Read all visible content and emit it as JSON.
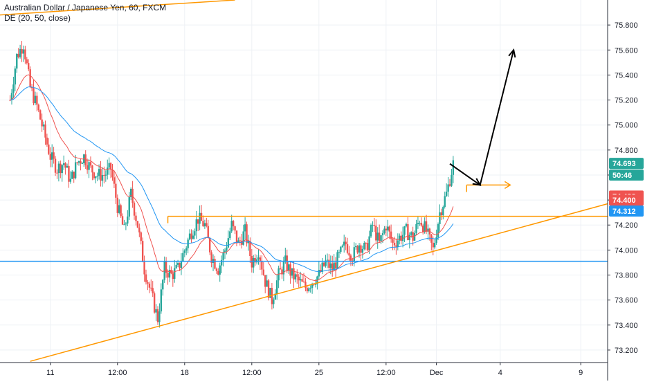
{
  "legend": {
    "symbol_line": "Australian Dollar / Japanese Yen, 60, FXCM",
    "indicator_line": "DE (20, 50, close)"
  },
  "chart_data": {
    "type": "candlestick",
    "title": "Australian Dollar / Japanese Yen, 60, FXCM",
    "ylim": [
      73.1,
      76.0
    ],
    "y_ticks": [
      "75.800",
      "75.600",
      "75.400",
      "75.200",
      "75.000",
      "74.800",
      "74.600",
      "74.400",
      "74.200",
      "74.000",
      "73.800",
      "73.600",
      "73.400",
      "73.200"
    ],
    "x_ticks": [
      "11",
      "12:00",
      "18",
      "12:00",
      "25",
      "12:00",
      "Dec",
      "4",
      "9"
    ],
    "bars_x_range": [
      0,
      132
    ],
    "x_tick_positions": [
      12,
      32,
      52,
      72,
      92,
      112,
      127,
      146,
      170
    ],
    "x_view": [
      -3,
      178
    ],
    "price_labels": [
      {
        "text": "74.693",
        "value": 74.693,
        "color": "#26a69a"
      },
      {
        "text": "50:46",
        "value": 74.6,
        "color": "#26a69a"
      },
      {
        "text": "74.432",
        "value": 74.432,
        "color": "#ef5350"
      },
      {
        "text": "74.400",
        "value": 74.4,
        "color": "#ef5350"
      },
      {
        "text": "74.312",
        "value": 74.312,
        "color": "#2196f3"
      }
    ],
    "colors": {
      "up": "#26a69a",
      "down": "#ef5350",
      "ema20": "#ef5350",
      "ema50": "#2196f3",
      "horizontal_support": "#2196f3",
      "drawing": "#ff9800",
      "arrow": "#000000"
    },
    "ohlc_anchor_points": [
      [
        0,
        75.2
      ],
      [
        2,
        75.55
      ],
      [
        4,
        75.65
      ],
      [
        6,
        75.3
      ],
      [
        8,
        75.15
      ],
      [
        10,
        74.95
      ],
      [
        12,
        74.75
      ],
      [
        14,
        74.65
      ],
      [
        16,
        74.7
      ],
      [
        18,
        74.55
      ],
      [
        20,
        74.7
      ],
      [
        22,
        74.75
      ],
      [
        24,
        74.65
      ],
      [
        26,
        74.6
      ],
      [
        28,
        74.6
      ],
      [
        30,
        74.65
      ],
      [
        32,
        74.35
      ],
      [
        34,
        74.15
      ],
      [
        36,
        74.45
      ],
      [
        38,
        74.2
      ],
      [
        40,
        73.85
      ],
      [
        42,
        73.65
      ],
      [
        44,
        73.45
      ],
      [
        46,
        73.85
      ],
      [
        48,
        73.8
      ],
      [
        50,
        73.85
      ],
      [
        52,
        74.0
      ],
      [
        54,
        74.15
      ],
      [
        56,
        74.25
      ],
      [
        58,
        74.2
      ],
      [
        60,
        73.95
      ],
      [
        62,
        73.85
      ],
      [
        64,
        74.0
      ],
      [
        66,
        74.2
      ],
      [
        68,
        74.05
      ],
      [
        70,
        74.15
      ],
      [
        72,
        73.9
      ],
      [
        74,
        74.0
      ],
      [
        76,
        73.75
      ],
      [
        78,
        73.6
      ],
      [
        80,
        73.8
      ],
      [
        82,
        73.9
      ],
      [
        84,
        73.8
      ],
      [
        86,
        73.75
      ],
      [
        88,
        73.7
      ],
      [
        90,
        73.75
      ],
      [
        92,
        73.8
      ],
      [
        94,
        73.9
      ],
      [
        96,
        73.85
      ],
      [
        98,
        73.95
      ],
      [
        100,
        74.05
      ],
      [
        102,
        73.95
      ],
      [
        104,
        74.05
      ],
      [
        106,
        74.0
      ],
      [
        108,
        74.2
      ],
      [
        110,
        74.05
      ],
      [
        112,
        74.2
      ],
      [
        114,
        74.05
      ],
      [
        116,
        74.1
      ],
      [
        118,
        74.15
      ],
      [
        120,
        74.1
      ],
      [
        122,
        74.25
      ],
      [
        124,
        74.15
      ],
      [
        126,
        74.0
      ],
      [
        128,
        74.3
      ],
      [
        130,
        74.45
      ],
      [
        132,
        74.69
      ]
    ],
    "drawings": {
      "support_level": 73.91,
      "resistance_level": 74.27,
      "resistance_start_x": 47,
      "breakout_level": 74.52,
      "breakout_start_x": 136,
      "breakout_end_x": 149,
      "rising_trendline": [
        [
          6,
          73.11
        ],
        [
          178,
          74.37
        ]
      ],
      "upper_channel_line": [
        [
          -3,
          75.88
        ],
        [
          67,
          76.0
        ]
      ],
      "arrow_path": [
        [
          131,
          74.69
        ],
        [
          140,
          74.52
        ],
        [
          150,
          75.6
        ]
      ]
    }
  }
}
